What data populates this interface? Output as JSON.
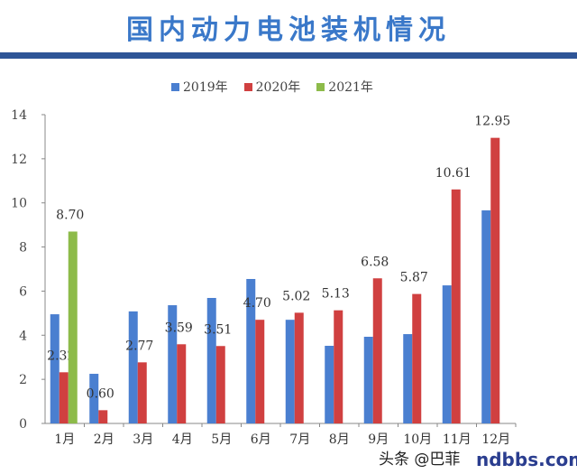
{
  "title": "国内动力电池装机情况",
  "watermark": "头条 @巴菲",
  "watermark_logo": "ndbbs.com",
  "chart_data": {
    "type": "bar",
    "title": "国内动力电池装机情况",
    "categories": [
      "1月",
      "2月",
      "3月",
      "4月",
      "5月",
      "6月",
      "7月",
      "8月",
      "9月",
      "10月",
      "11月",
      "12月"
    ],
    "ylim": [
      0,
      14
    ],
    "yticks": [
      0,
      2,
      4,
      6,
      8,
      10,
      12,
      14
    ],
    "legend": "top",
    "grid": false,
    "series": [
      {
        "name": "2019年",
        "color": "#4a7fd0",
        "values": [
          4.95,
          2.25,
          5.08,
          5.36,
          5.69,
          6.55,
          4.7,
          3.52,
          3.93,
          4.05,
          6.26,
          9.66
        ]
      },
      {
        "name": "2020年",
        "color": "#d04040",
        "values": [
          2.32,
          0.6,
          2.77,
          3.59,
          3.51,
          4.7,
          5.02,
          5.13,
          6.58,
          5.87,
          10.61,
          12.95
        ],
        "labels": [
          "2.32",
          "0.60",
          "2.77",
          "3.59",
          "3.51",
          "4.70",
          "5.02",
          "5.13",
          "6.58",
          "5.87",
          "10.61",
          "12.95"
        ]
      },
      {
        "name": "2021年",
        "color": "#8dbb4a",
        "values": [
          8.7,
          null,
          null,
          null,
          null,
          null,
          null,
          null,
          null,
          null,
          null,
          null
        ],
        "labels": [
          "8.70"
        ]
      }
    ]
  }
}
